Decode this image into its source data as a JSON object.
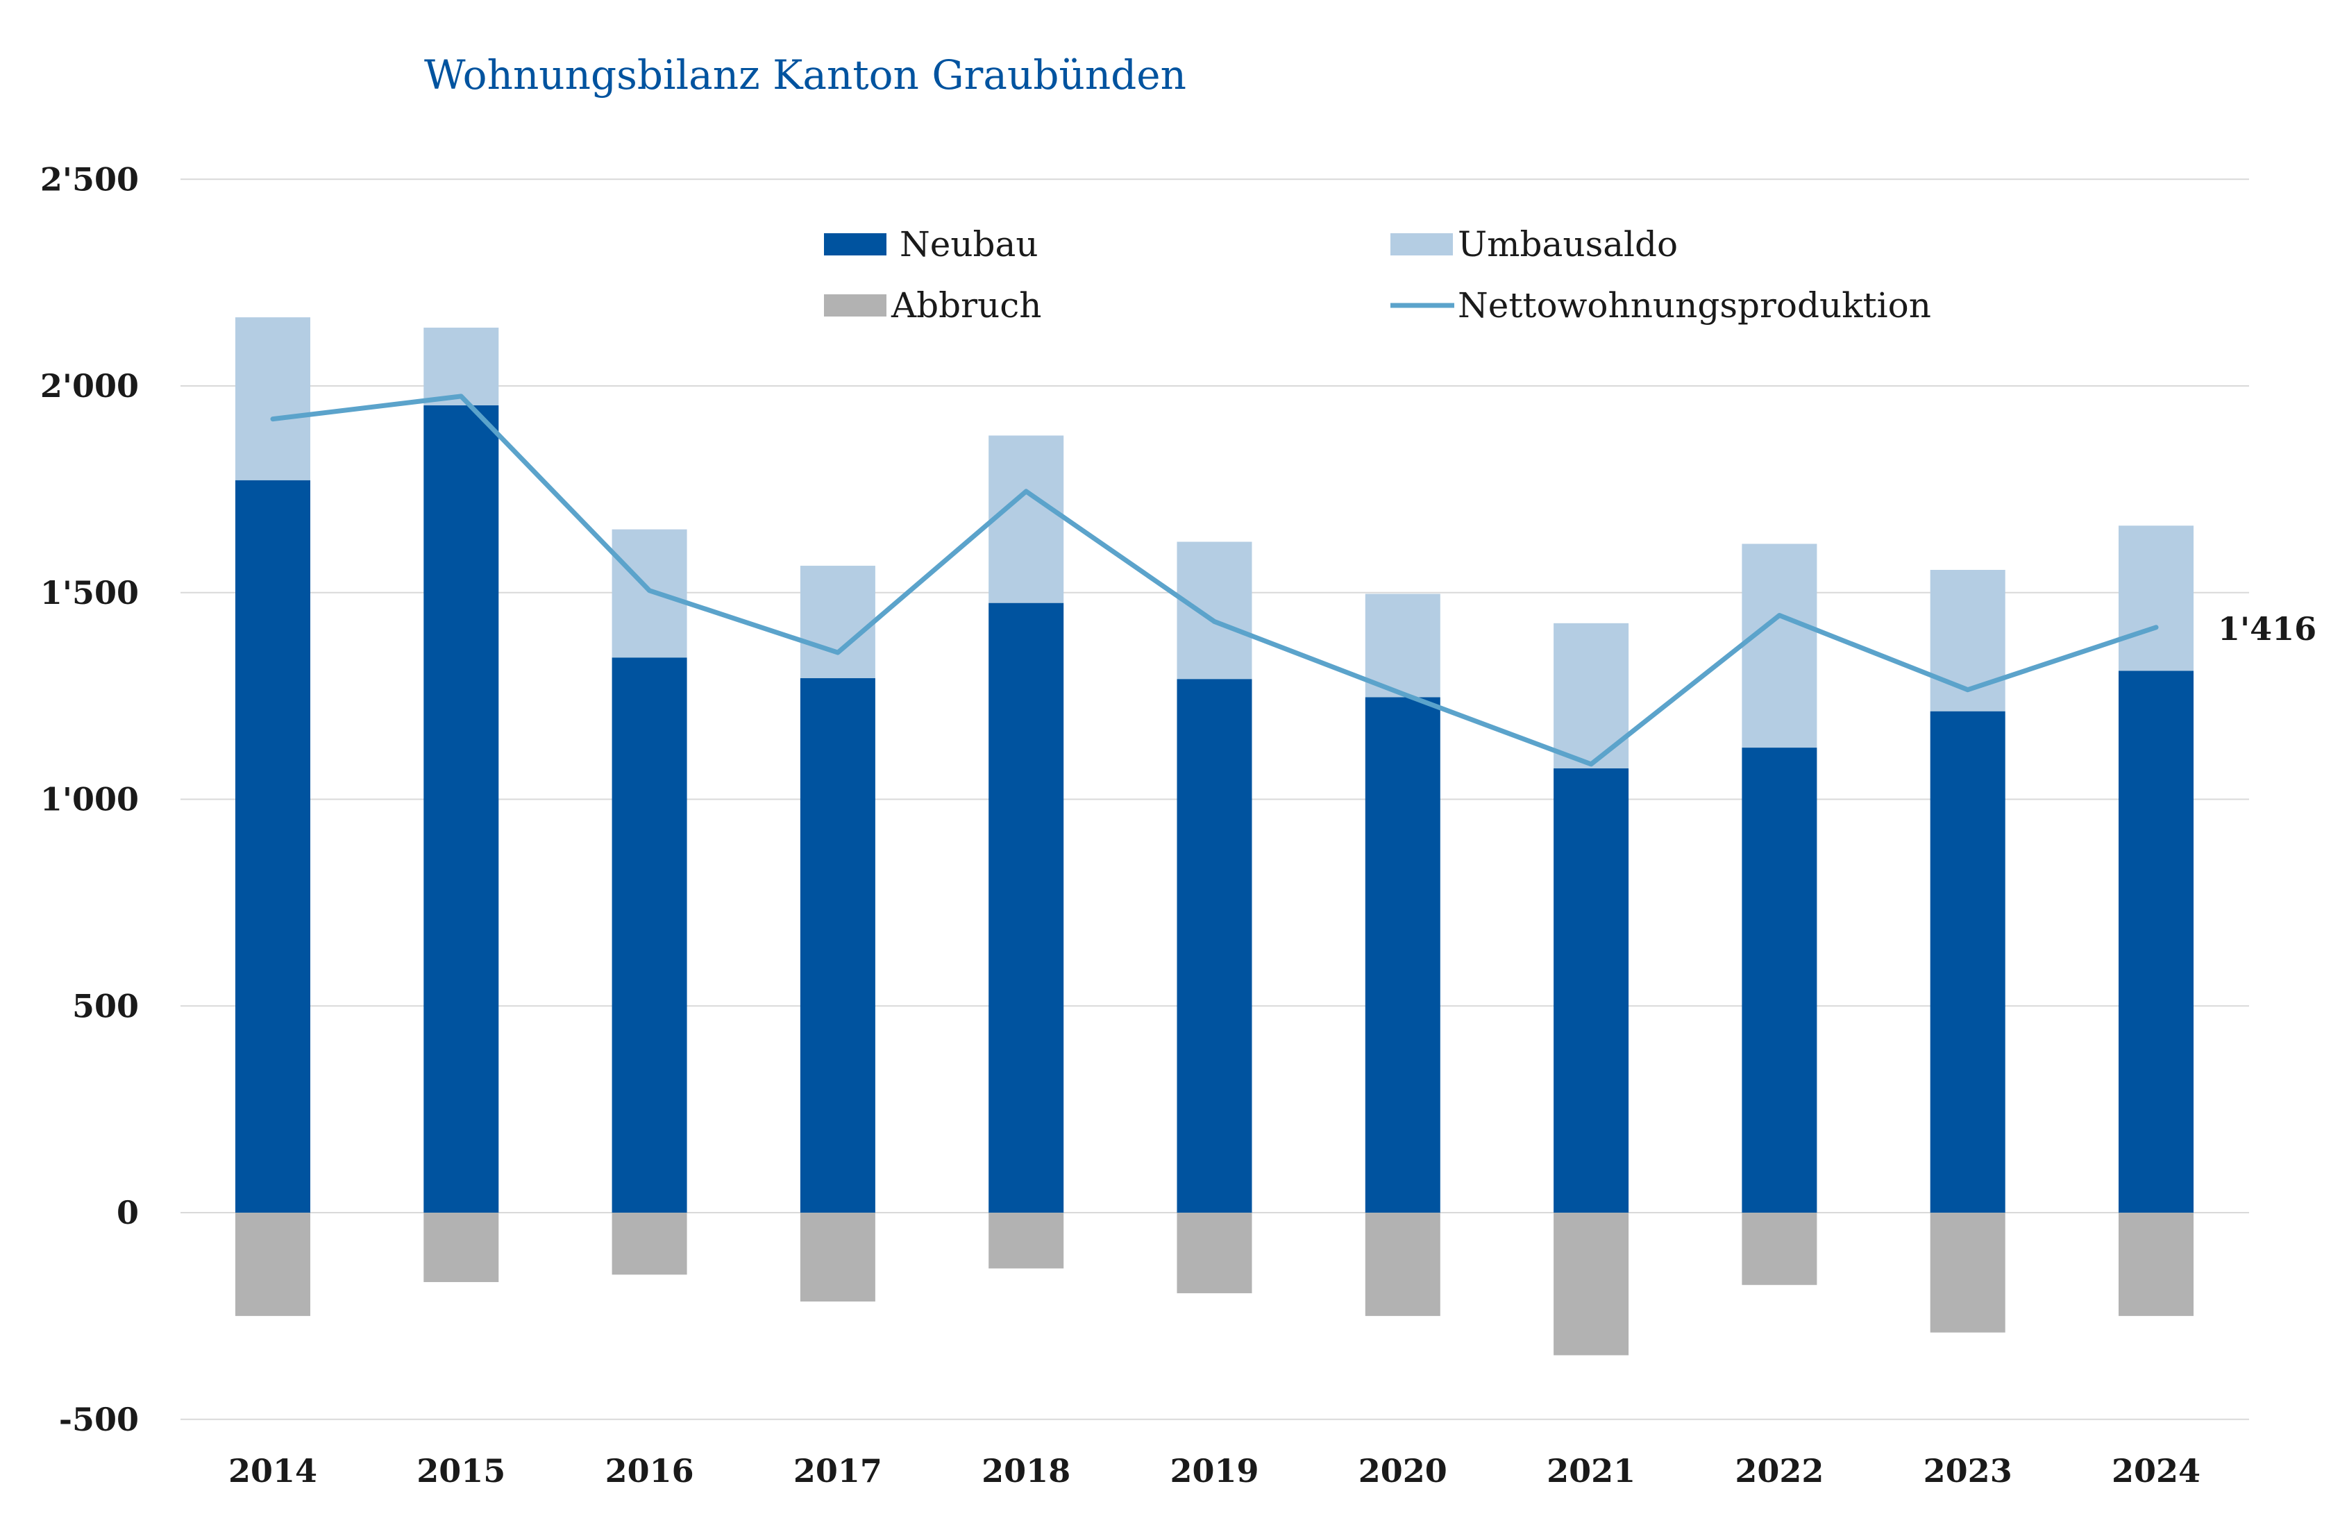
{
  "chart_data": {
    "type": "bar",
    "title": "Wohnungsbilanz Kanton Graubünden",
    "categories": [
      "2014",
      "2015",
      "2016",
      "2017",
      "2018",
      "2019",
      "2020",
      "2021",
      "2022",
      "2023",
      "2024"
    ],
    "series": [
      {
        "name": "Neubau",
        "kind": "bar",
        "stack": "main",
        "color": "#00539f",
        "values": [
          1772,
          1953,
          1343,
          1293,
          1475,
          1291,
          1247,
          1075,
          1125,
          1213,
          1311
        ]
      },
      {
        "name": "Umbausaldo",
        "kind": "bar",
        "stack": "main",
        "color": "#b4cde3",
        "values": [
          394,
          188,
          310,
          272,
          405,
          332,
          250,
          351,
          493,
          342,
          351
        ]
      },
      {
        "name": "Abbruch",
        "kind": "bar",
        "stack": "main",
        "color": "#b2b2b2",
        "values": [
          -250,
          -168,
          -150,
          -215,
          -135,
          -195,
          -250,
          -345,
          -175,
          -290,
          -250
        ]
      },
      {
        "name": "Nettowohnungsproduktion",
        "kind": "line",
        "color": "#5ba3cb",
        "values": [
          1920,
          1975,
          1505,
          1355,
          1745,
          1430,
          1255,
          1085,
          1445,
          1265,
          1416
        ]
      }
    ],
    "end_label": "1'416",
    "yticks": [
      "-500",
      "0",
      "500",
      "1'000",
      "1'500",
      "2'000",
      "2'500"
    ],
    "ylim": [
      -500,
      2500
    ],
    "ytick_values": [
      -500,
      0,
      500,
      1000,
      1500,
      2000,
      2500
    ],
    "xlabel": "",
    "ylabel": "",
    "grid": true,
    "legend": "top-center",
    "title_color": "#00539f",
    "gridline_color": "#d9d9d9"
  }
}
